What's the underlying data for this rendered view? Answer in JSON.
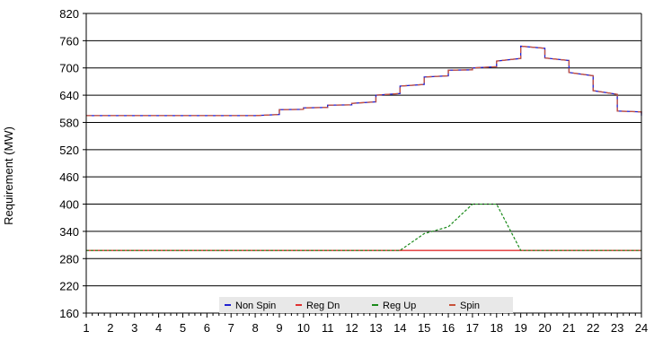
{
  "chart_data": {
    "type": "line",
    "ylabel": "Requirement (MW)",
    "xlabel": "",
    "x": [
      1,
      2,
      3,
      4,
      5,
      6,
      7,
      8,
      9,
      10,
      11,
      12,
      13,
      14,
      15,
      16,
      17,
      18,
      19,
      20,
      21,
      22,
      23,
      24
    ],
    "xlim": [
      1,
      24
    ],
    "ylim": [
      160,
      820
    ],
    "yticks": [
      160,
      220,
      280,
      340,
      400,
      460,
      520,
      580,
      640,
      700,
      760,
      820
    ],
    "grid": "horizontal",
    "legend_position": "bottom",
    "series": [
      {
        "name": "Non Spin",
        "color": "#2020d0",
        "style": "step",
        "values": [
          595,
          595,
          595,
          595,
          595,
          595,
          595,
          595,
          608,
          612,
          618,
          622,
          640,
          660,
          680,
          695,
          700,
          715,
          748,
          722,
          690,
          650,
          605,
          595
        ]
      },
      {
        "name": "Reg Dn",
        "color": "#e03030",
        "style": "flat",
        "values": [
          298,
          298,
          298,
          298,
          298,
          298,
          298,
          298,
          298,
          298,
          298,
          298,
          298,
          298,
          298,
          298,
          298,
          298,
          298,
          298,
          298,
          298,
          298,
          298
        ]
      },
      {
        "name": "Reg Up",
        "color": "#1a8a1a",
        "style": "dashed",
        "values": [
          298,
          298,
          298,
          298,
          298,
          298,
          298,
          298,
          298,
          298,
          298,
          298,
          298,
          298,
          335,
          350,
          400,
          400,
          298,
          298,
          298,
          298,
          298,
          298
        ]
      },
      {
        "name": "Spin",
        "color": "#c8523a",
        "style": "step",
        "values": [
          595,
          595,
          595,
          595,
          595,
          595,
          595,
          595,
          608,
          612,
          618,
          622,
          640,
          660,
          680,
          695,
          700,
          715,
          748,
          722,
          690,
          650,
          605,
          595
        ]
      }
    ]
  }
}
